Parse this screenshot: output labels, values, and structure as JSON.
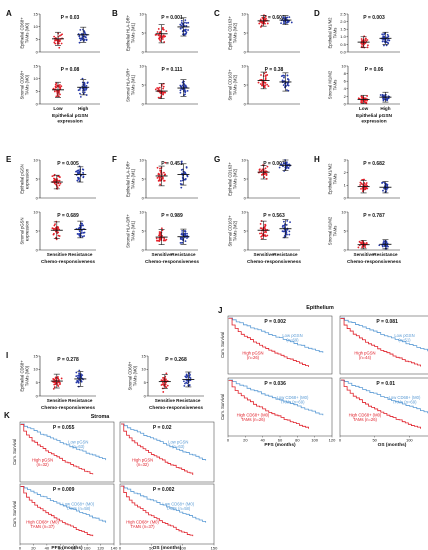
{
  "colors": {
    "low": "#e5202a",
    "high": "#2639a8",
    "km_low": "#5b9bd5",
    "km_high": "#e0202a"
  },
  "panels": [
    {
      "letter": "A",
      "label_top": "Epithelial CD68+ TAMs (M0)",
      "p_top": "P = 0.03",
      "label_bot": "Stromal CD68+ TAMs (M0)",
      "p_bot": "P = 0.08",
      "cats": [
        "Low",
        "High"
      ],
      "xaxis": "Epithelial pGSN expression",
      "top": {
        "ylim": [
          0,
          15
        ],
        "ticks": [
          "15",
          "10",
          "5",
          "0"
        ],
        "g1": {
          "mean": 5.2,
          "sd": 2.6
        },
        "g2": {
          "mean": 6.8,
          "sd": 3.0
        }
      },
      "bot": {
        "ylim": [
          0,
          15
        ],
        "ticks": [
          "15",
          "10",
          "5",
          "0"
        ],
        "g1": {
          "mean": 5.6,
          "sd": 3.0
        },
        "g2": {
          "mean": 6.6,
          "sd": 3.0
        }
      }
    },
    {
      "letter": "B",
      "label_top": "Epithelial HLA-DR+ TAMs (M1)",
      "p_top": "P = 0.001",
      "label_bot": "Stromal HLA-DR+ TAMs (M1)",
      "p_bot": "P = 0.111",
      "cats": [
        "",
        ""
      ],
      "xaxis": "",
      "top": {
        "ylim": [
          0,
          10
        ],
        "ticks": [
          "10",
          "5",
          "0"
        ],
        "g1": {
          "mean": 4.8,
          "sd": 2.4
        },
        "g2": {
          "mean": 6.6,
          "sd": 2.4
        }
      },
      "bot": {
        "ylim": [
          0,
          10
        ],
        "ticks": [
          "10",
          "5",
          "0"
        ],
        "g1": {
          "mean": 3.4,
          "sd": 2.0
        },
        "g2": {
          "mean": 4.2,
          "sd": 2.2
        }
      }
    },
    {
      "letter": "C",
      "label_top": "Epithelial CD163+ TAMs (M2)",
      "p_top": "P = 0.602",
      "label_bot": "Stromal CD163+ TAMs (M2)",
      "p_bot": "P = 0.38",
      "cats": [
        "",
        ""
      ],
      "xaxis": "",
      "top": {
        "ylim": [
          0,
          10
        ],
        "ticks": [
          "10",
          "5",
          "0"
        ],
        "g1": {
          "mean": 8.2,
          "sd": 1.4
        },
        "g2": {
          "mean": 8.4,
          "sd": 1.2
        }
      },
      "bot": {
        "ylim": [
          0,
          10
        ],
        "ticks": [
          "10",
          "5",
          "0"
        ],
        "g1": {
          "mean": 6.2,
          "sd": 2.2
        },
        "g2": {
          "mean": 5.8,
          "sd": 2.4
        }
      }
    },
    {
      "letter": "D",
      "label_top": "Epithelial M1/M2 TAMs",
      "p_top": "P = 0.003",
      "label_bot": "Stromal M1/M2 TAMs",
      "p_bot": "P = 0.06",
      "cats": [
        "Low",
        "High"
      ],
      "xaxis": "Epithelial pGSN expression",
      "top": {
        "ylim": [
          0,
          2.5
        ],
        "ticks": [
          "2.5",
          "2.0",
          "1.5",
          "1.0",
          "0.5",
          "0.0"
        ],
        "g1": {
          "mean": 0.65,
          "sd": 0.35
        },
        "g2": {
          "mean": 0.9,
          "sd": 0.4
        }
      },
      "bot": {
        "ylim": [
          0,
          10
        ],
        "ticks": [
          "10",
          "8",
          "6",
          "4",
          "2",
          "0"
        ],
        "g1": {
          "mean": 1.2,
          "sd": 1.1
        },
        "g2": {
          "mean": 1.8,
          "sd": 1.3
        }
      }
    },
    {
      "letter": "E",
      "label_top": "Epithelial pGSN expression",
      "p_top": "P = 0.005",
      "label_bot": "Stromal pGSN expression",
      "p_bot": "P = 0.689",
      "cats": [
        "Sensitive",
        "Resistance"
      ],
      "xaxis": "Chemo-responsiveness",
      "top": {
        "ylim": [
          0,
          10
        ],
        "ticks": [
          "10",
          "5",
          "0"
        ],
        "g1": {
          "mean": 4.2,
          "sd": 1.8
        },
        "g2": {
          "mean": 6.2,
          "sd": 2.0
        }
      },
      "bot": {
        "ylim": [
          0,
          10
        ],
        "ticks": [
          "10",
          "5",
          "0"
        ],
        "g1": {
          "mean": 5.2,
          "sd": 2.2
        },
        "g2": {
          "mean": 5.4,
          "sd": 2.2
        }
      }
    },
    {
      "letter": "F",
      "label_top": "Epithelial HLA-DR+ TAMs (M1)",
      "p_top": "P = 0.451",
      "label_bot": "Stromal HLA-DR+ TAMs (M1)",
      "p_bot": "P = 0.989",
      "cats": [
        "Sensitive",
        "Resistance"
      ],
      "xaxis": "Chemo-responsiveness",
      "top": {
        "ylim": [
          0,
          10
        ],
        "ticks": [
          "10",
          "5",
          "0"
        ],
        "g1": {
          "mean": 5.8,
          "sd": 2.6
        },
        "g2": {
          "mean": 6.2,
          "sd": 2.8
        }
      },
      "bot": {
        "ylim": [
          0,
          10
        ],
        "ticks": [
          "10",
          "5",
          "0"
        ],
        "g1": {
          "mean": 3.4,
          "sd": 2.0
        },
        "g2": {
          "mean": 3.5,
          "sd": 2.0
        }
      }
    },
    {
      "letter": "G",
      "label_top": "Epithelial CD163+ TAMs (M2)",
      "p_top": "P = 0.007",
      "label_bot": "Stromal CD163+ TAMs (M2)",
      "p_bot": "P = 0.563",
      "cats": [
        "Sensitive",
        "Resistance"
      ],
      "xaxis": "Chemo-responsiveness",
      "top": {
        "ylim": [
          0,
          10
        ],
        "ticks": [
          "10",
          "5",
          "0"
        ],
        "g1": {
          "mean": 6.8,
          "sd": 1.8
        },
        "g2": {
          "mean": 8.6,
          "sd": 1.4
        }
      },
      "bot": {
        "ylim": [
          0,
          10
        ],
        "ticks": [
          "10",
          "5",
          "0"
        ],
        "g1": {
          "mean": 5.2,
          "sd": 2.4
        },
        "g2": {
          "mean": 5.6,
          "sd": 2.4
        }
      }
    },
    {
      "letter": "H",
      "label_top": "Epithelial M1/M2 TAMs",
      "p_top": "P = 0.682",
      "label_bot": "Stromal M1/M2 TAMs",
      "p_bot": "P = 0.787",
      "cats": [
        "Sensitive",
        "Resistance"
      ],
      "xaxis": "Chemo-responsiveness",
      "top": {
        "ylim": [
          0,
          3
        ],
        "ticks": [
          "3",
          "2",
          "1",
          "0"
        ],
        "g1": {
          "mean": 0.9,
          "sd": 0.5
        },
        "g2": {
          "mean": 0.85,
          "sd": 0.45
        }
      },
      "bot": {
        "ylim": [
          0,
          10
        ],
        "ticks": [
          "10",
          "5",
          "0"
        ],
        "g1": {
          "mean": 1.4,
          "sd": 1.1
        },
        "g2": {
          "mean": 1.5,
          "sd": 1.2
        }
      }
    },
    {
      "letter": "I",
      "label_top": "Epithelial CD68+ TAMs (M0)",
      "p_top": "P = 0.278",
      "label_bot": "Stromal CD68+ TAMs (M0)",
      "p_bot": "P = 0.268",
      "cats": [
        "Sensitive",
        "Resistance"
      ],
      "xaxis": "Chemo-responsiveness",
      "top": {
        "ylim": [
          0,
          15
        ],
        "ticks": [
          "15",
          "10",
          "5",
          "0"
        ],
        "g1": {
          "mean": 5.6,
          "sd": 2.6
        },
        "g2": {
          "mean": 6.4,
          "sd": 2.8
        }
      },
      "bot": {
        "ylim": [
          0,
          15
        ],
        "ticks": [
          "15",
          "10",
          "5",
          "0"
        ],
        "g1": {
          "mean": 5.4,
          "sd": 2.6
        },
        "g2": {
          "mean": 6.2,
          "sd": 2.8
        }
      }
    }
  ],
  "km": {
    "J": {
      "letter": "J",
      "title": "Epithelium",
      "ylabel": "Cum. Survival",
      "x_pfs": "PFS (months)",
      "x_os": "OS (months)",
      "pfs_ticks": [
        "0",
        "20",
        "40",
        "60",
        "80",
        "100",
        "120"
      ],
      "os_ticks": [
        "0",
        "50",
        "100",
        "150"
      ],
      "plots": [
        {
          "p": "P = 0.002",
          "low": "Low pGSN (n=69)",
          "high": "High pGSN (n=26)"
        },
        {
          "p": "P = 0.081",
          "low": "Low pGSN (n=51)",
          "high": "High pGSN (n=44)"
        },
        {
          "p": "P = 0.036",
          "low": "Low CD68+ (M0) TAMs (n=69)",
          "high": "High CD68+ (M0) TAMs (n=26)"
        },
        {
          "p": "P = 0.01",
          "low": "Low CD68+ (M0) TAMs (n=69)",
          "high": "High CD68+ (M0) TAMs (n=26)"
        }
      ]
    },
    "K": {
      "letter": "K",
      "title": "Stroma",
      "ylabel": "Cum. Survival",
      "x_pfs": "PFS (months)",
      "x_os": "OS (months)",
      "pfs_ticks": [
        "0",
        "20",
        "40",
        "60",
        "80",
        "100",
        "120",
        "140"
      ],
      "os_ticks": [
        "0",
        "50",
        "100",
        "150"
      ],
      "plots": [
        {
          "p": "P = 0.055",
          "low": "Low pGSN (n=63)",
          "high": "High pGSN (n=32)"
        },
        {
          "p": "P = 0.02",
          "low": "Low pGSN (n=63)",
          "high": "High pGSN (n=32)"
        },
        {
          "p": "P = 0.009",
          "low": "Low CD68+ (M0) TAMs (n=58)",
          "high": "High CD68+ (M0) TAMs (n=37)"
        },
        {
          "p": "P = 0.002",
          "low": "Low CD68+ (M0) TAMs (n=58)",
          "high": "High CD68+ (M0) TAMs (n=37)"
        }
      ]
    }
  }
}
